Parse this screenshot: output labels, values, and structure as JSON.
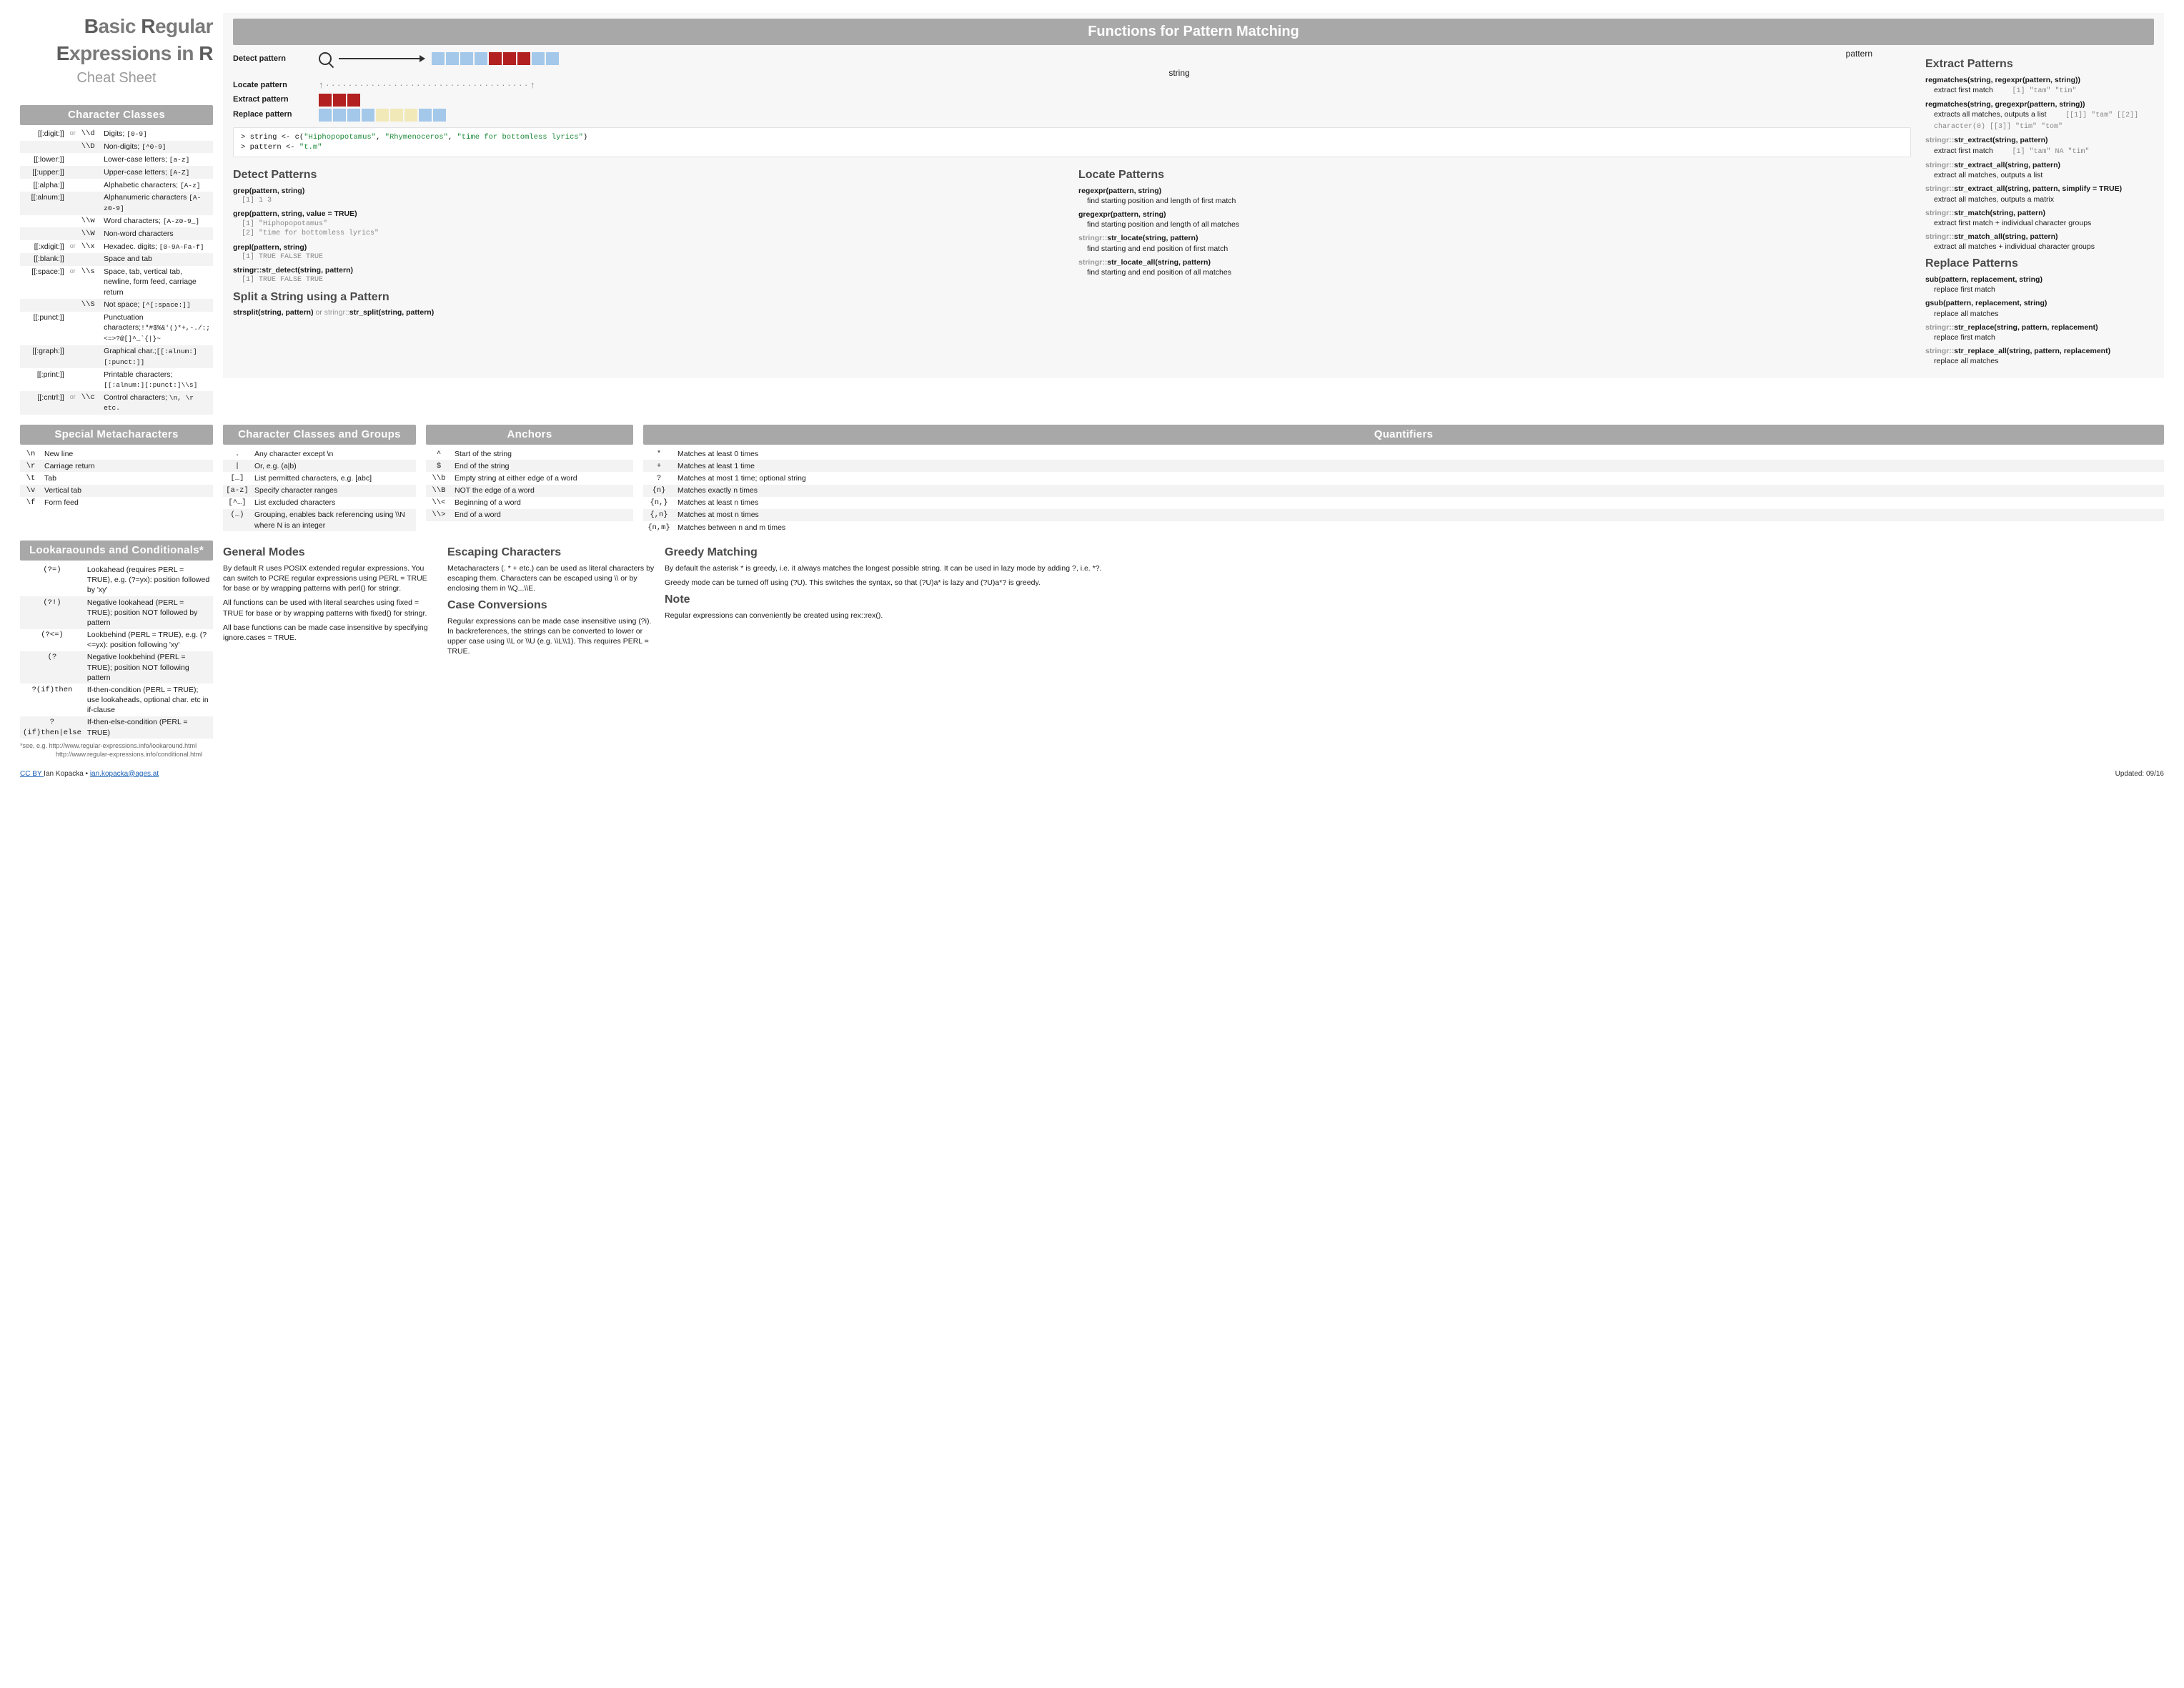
{
  "title": {
    "line1_a": "B",
    "line1_b": "asic ",
    "line1_c": "R",
    "line1_d": "egular",
    "line2_a": "E",
    "line2_b": "xpressions in ",
    "line2_c": "R",
    "sub": "Cheat Sheet"
  },
  "colors": {
    "blue": "#a3c8ea",
    "red": "#b22020",
    "yellow": "#f2e9b8",
    "header_bg": "#a8a8a8"
  },
  "headers": {
    "functions": "Functions  for Pattern Matching",
    "char_classes": "Character Classes",
    "special_meta": "Special Metacharacters",
    "lookaround": "Lookaraounds and Conditionals*",
    "ccg": "Character Classes and Groups",
    "anchors": "Anchors",
    "quantifiers": "Quantifiers"
  },
  "sub": {
    "detect": "Detect Patterns",
    "locate": "Locate Patterns",
    "extract": "Extract Patterns",
    "replace": "Replace Patterns",
    "split": "Split a String using a Pattern",
    "general": "General Modes",
    "escaping": "Escaping Characters",
    "caseconv": "Case Conversions",
    "greedy": "Greedy Matching",
    "note": "Note"
  },
  "diagram": {
    "detect": "Detect pattern",
    "locate": "Locate pattern",
    "extract": "Extract pattern",
    "replace": "Replace pattern",
    "pattern": "pattern",
    "string": "string"
  },
  "code_sample": {
    "l1a": "> string <- c(",
    "l1b": "\"Hiphopopotamus\"",
    "l1c": ", ",
    "l1d": "\"Rhymenoceros\"",
    "l1e": ", ",
    "l1f": "\"time for bottomless lyrics\"",
    "l1g": ")",
    "l2a": "> pattern <- ",
    "l2b": "\"t.m\""
  },
  "char_classes": [
    {
      "k": "[[:digit:]]",
      "or": "or",
      "k2": "\\\\d",
      "d": "Digits; ",
      "c": "[0-9]"
    },
    {
      "k": "",
      "or": "",
      "k2": "\\\\D",
      "d": "Non-digits; ",
      "c": "[^0-9]"
    },
    {
      "k": "[[:lower:]]",
      "or": "",
      "k2": "",
      "d": "Lower-case letters; ",
      "c": "[a-z]"
    },
    {
      "k": "[[:upper:]]",
      "or": "",
      "k2": "",
      "d": "Upper-case letters; ",
      "c": "[A-Z]"
    },
    {
      "k": "[[:alpha:]]",
      "or": "",
      "k2": "",
      "d": "Alphabetic characters; ",
      "c": "[A-z]"
    },
    {
      "k": "[[:alnum:]]",
      "or": "",
      "k2": "",
      "d": "Alphanumeric characters ",
      "c": "[A-z0-9]"
    },
    {
      "k": "",
      "or": "",
      "k2": "\\\\w",
      "d": "Word characters; ",
      "c": "[A-z0-9_]"
    },
    {
      "k": "",
      "or": "",
      "k2": "\\\\W",
      "d": "Non-word characters",
      "c": ""
    },
    {
      "k": "[[:xdigit:]]",
      "or": "or",
      "k2": "\\\\x",
      "d": "Hexadec. digits; ",
      "c": "[0-9A-Fa-f]"
    },
    {
      "k": "[[:blank:]]",
      "or": "",
      "k2": "",
      "d": "Space and tab",
      "c": ""
    },
    {
      "k": "[[:space:]]",
      "or": "or",
      "k2": "\\\\s",
      "d": "Space, tab, vertical tab, newline, form feed, carriage return",
      "c": ""
    },
    {
      "k": "",
      "or": "",
      "k2": "\\\\S",
      "d": "Not space; ",
      "c": "[^[:space:]]"
    },
    {
      "k": "[[:punct:]]",
      "or": "",
      "k2": "",
      "d": "Punctuation characters;",
      "c": "!\"#$%&'()*+,-./:;<=>?@[]^_`{|}~"
    },
    {
      "k": "[[:graph:]]",
      "or": "",
      "k2": "",
      "d": "Graphical char.;",
      "c": "[[:alnum:][:punct:]]"
    },
    {
      "k": "[[:print:]]",
      "or": "",
      "k2": "",
      "d": "Printable characters;",
      "c": "[[:alnum:][:punct:]\\\\s]"
    },
    {
      "k": "[[:cntrl:]]",
      "or": "or",
      "k2": "\\\\c",
      "d": "Control characters; ",
      "c": "\\n, \\r etc."
    }
  ],
  "special_meta": [
    {
      "s": "\\n",
      "d": "New line"
    },
    {
      "s": "\\r",
      "d": "Carriage return"
    },
    {
      "s": "\\t",
      "d": "Tab"
    },
    {
      "s": "\\v",
      "d": "Vertical tab"
    },
    {
      "s": "\\f",
      "d": "Form feed"
    }
  ],
  "lookaround": [
    {
      "s": "(?=)",
      "d": "Lookahead (requires PERL = TRUE), e.g. (?=yx): position followed by 'xy'"
    },
    {
      "s": "(?!)",
      "d": "Negative lookahead (PERL = TRUE); position NOT followed by pattern"
    },
    {
      "s": "(?<=)",
      "d": "Lookbehind (PERL = TRUE), e.g. (?<=yx): position following 'xy'"
    },
    {
      "s": "(?<!)",
      "d": "Negative lookbehind (PERL = TRUE); position NOT following pattern"
    },
    {
      "s": "?(if)then",
      "d": "If-then-condition (PERL = TRUE); use lookaheads, optional char. etc in if-clause"
    },
    {
      "s": "?(if)then|else",
      "d": "If-then-else-condition (PERL = TRUE)"
    }
  ],
  "lookaround_note1": "*see, e.g.   http://www.regular-expressions.info/lookaround.html",
  "lookaround_note2": "http://www.regular-expressions.info/conditional.html",
  "detect_fns": [
    {
      "sig": "grep(pattern, string)",
      "out": "[1] 1 3"
    },
    {
      "sig": "grep(pattern, string, value = TRUE)",
      "out": "[1] \"Hiphopopotamus\"\n[2] \"time for bottomless lyrics\""
    },
    {
      "sig": "grepl(pattern, string)",
      "out": "[1]  TRUE FALSE  TRUE"
    },
    {
      "sig": "stringr::str_detect(string, pattern)",
      "out": "[1]  TRUE FALSE  TRUE"
    }
  ],
  "locate_fns": [
    {
      "sig": "regexpr(pattern, string)",
      "desc": "find starting position and length of first match"
    },
    {
      "sig": "gregexpr(pattern, string)",
      "desc": "find starting position and length of all matches"
    },
    {
      "sig": "stringr::str_locate(string, pattern)",
      "desc": "find starting and end position of first match",
      "pkg": true
    },
    {
      "sig": "stringr::str_locate_all(string, pattern)",
      "desc": "find starting and end position of all matches",
      "pkg": true
    }
  ],
  "extract_fns": [
    {
      "sig": "regmatches(string, regexpr(pattern, string))",
      "desc": "extract first match",
      "out": "[1] \"tam\" \"tim\""
    },
    {
      "sig": "regmatches(string, gregexpr(pattern, string))",
      "desc": "extracts all matches, outputs a list",
      "out": "[[1]] \"tam\" [[2]] character(0) [[3]] \"tim\" \"tom\""
    },
    {
      "sig": "stringr::str_extract(string, pattern)",
      "desc": "extract first match",
      "out": "[1] \"tam\" NA  \"tim\"",
      "pkg": true
    },
    {
      "sig": "stringr::str_extract_all(string, pattern)",
      "desc": "extract all matches, outputs a list",
      "pkg": true
    },
    {
      "sig": "stringr::str_extract_all(string, pattern, simplify = TRUE)",
      "desc": "extract all matches, outputs a matrix",
      "pkg": true
    },
    {
      "sig": "stringr::str_match(string, pattern)",
      "desc": "extract first match + individual character groups",
      "pkg": true
    },
    {
      "sig": "stringr::str_match_all(string, pattern)",
      "desc": "extract all matches + individual character groups",
      "pkg": true
    }
  ],
  "replace_fns": [
    {
      "sig": "sub(pattern, replacement, string)",
      "desc": "replace first match"
    },
    {
      "sig": "gsub(pattern, replacement, string)",
      "desc": "replace all matches"
    },
    {
      "sig": "stringr::str_replace(string, pattern, replacement)",
      "desc": "replace first match",
      "pkg": true
    },
    {
      "sig": "stringr::str_replace_all(string, pattern, replacement)",
      "desc": "replace all matches",
      "pkg": true
    }
  ],
  "split_text_a": "strsplit(string, pattern)",
  "split_text_b": " or ",
  "split_text_c": "stringr::",
  "split_text_d": "str_split(string, pattern)",
  "ccg": [
    {
      "s": ".",
      "d": "Any character except \\n"
    },
    {
      "s": "|",
      "d": "Or, e.g. (a|b)"
    },
    {
      "s": "[…]",
      "d": "List permitted characters, e.g. [abc]"
    },
    {
      "s": "[a-z]",
      "d": "Specify character ranges"
    },
    {
      "s": "[^…]",
      "d": "List excluded characters"
    },
    {
      "s": "(…)",
      "d": "Grouping, enables back referencing using \\\\N where N is an integer"
    }
  ],
  "anchors": [
    {
      "s": "^",
      "d": "Start of the string"
    },
    {
      "s": "$",
      "d": "End of the string"
    },
    {
      "s": "\\\\b",
      "d": "Empty string at either edge of a word"
    },
    {
      "s": "\\\\B",
      "d": "NOT the edge of a word"
    },
    {
      "s": "\\\\<",
      "d": "Beginning of a word"
    },
    {
      "s": "\\\\>",
      "d": "End of a word"
    }
  ],
  "quantifiers": [
    {
      "s": "*",
      "d": "Matches at least 0 times"
    },
    {
      "s": "+",
      "d": "Matches at least 1 time"
    },
    {
      "s": "?",
      "d": "Matches at most 1 time; optional string"
    },
    {
      "s": "{n}",
      "d": "Matches exactly n times"
    },
    {
      "s": "{n,}",
      "d": "Matches at least n times"
    },
    {
      "s": "{,n}",
      "d": "Matches at most n times"
    },
    {
      "s": "{n,m}",
      "d": "Matches between n and m times"
    }
  ],
  "general_p1": "By default R uses POSIX extended regular expressions. You can switch to PCRE regular expressions using PERL = TRUE for base or by wrapping patterns with perl() for stringr.",
  "general_p2": "All functions can be used with literal searches using fixed = TRUE  for base or by wrapping patterns with fixed() for stringr.",
  "general_p3": "All base functions can be made case insensitive by specifying ignore.cases = TRUE.",
  "escaping_p": "Metacharacters (.  *  + etc.) can be used as literal characters by escaping them. Characters can be escaped using \\\\ or by enclosing them in \\\\Q...\\\\E.",
  "caseconv_p": "Regular expressions can be made case insensitive using (?i). In backreferences, the strings can be converted to lower or upper case using \\\\L or \\\\U (e.g. \\\\L\\\\1). This requires PERL = TRUE.",
  "greedy_p1": "By default the asterisk * is greedy, i.e. it always matches the longest possible string. It can be used in lazy mode by adding ?, i.e. *?.",
  "greedy_p2": "Greedy mode can be turned off using (?U). This switches the syntax, so that (?U)a*  is lazy and (?U)a*? is greedy.",
  "note_p": "Regular expressions can conveniently be created using rex::rex().",
  "footer": {
    "left_a": "CC BY ",
    "left_b": "Ian Kopacka  •  ",
    "left_c": "ian.kopacka@ages.at",
    "right": "Updated: 09/16"
  }
}
